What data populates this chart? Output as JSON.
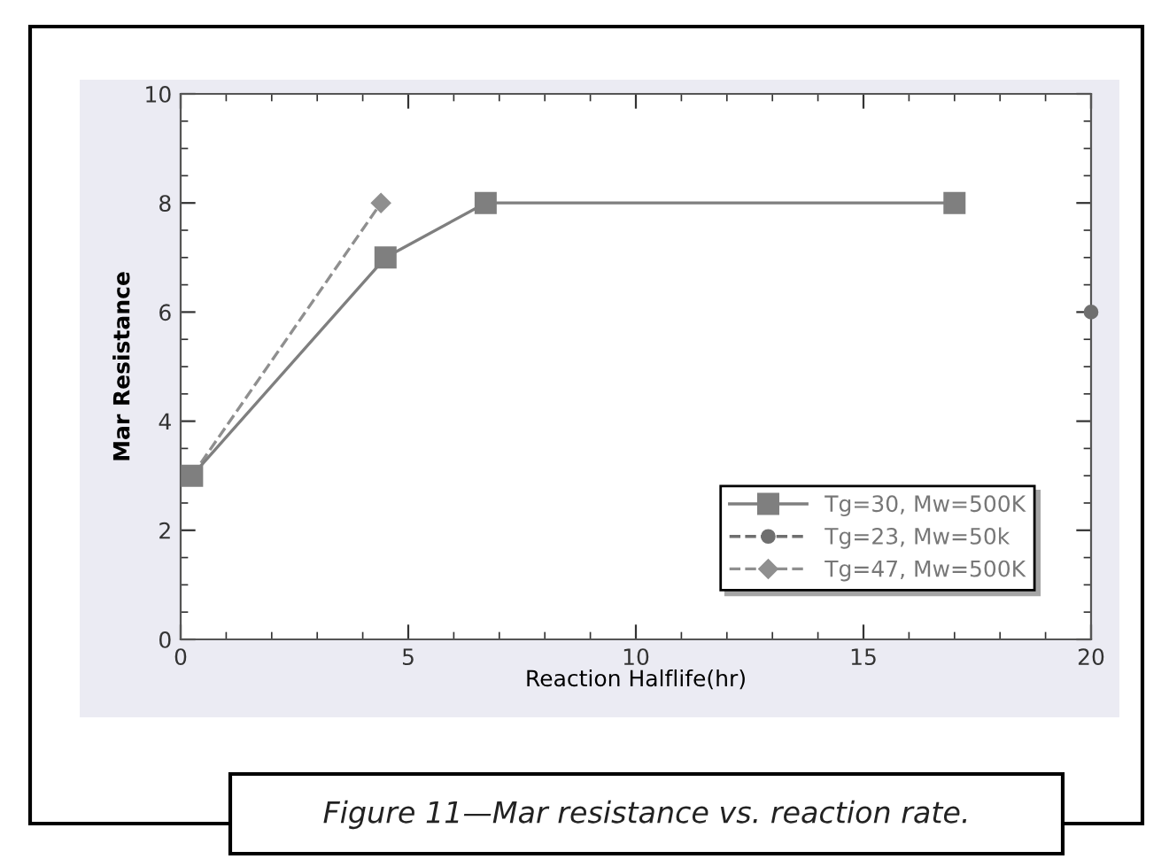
{
  "chart_data": {
    "type": "line",
    "xlabel": "Reaction Halflife(hr)",
    "ylabel": "Mar Resistance",
    "xlim": [
      0,
      20
    ],
    "xticks": [
      0,
      5,
      10,
      15,
      20
    ],
    "ylim": [
      0,
      10
    ],
    "yticks": [
      0,
      2,
      4,
      6,
      8,
      10
    ],
    "grid": false,
    "legend": "bottom right",
    "series": [
      {
        "name": "Tg=30, Mw=500K",
        "color": "#7f7f7f",
        "marker": "square",
        "line_style": "solid",
        "x": [
          0.25,
          4.5,
          6.7,
          17
        ],
        "values": [
          3,
          7,
          8,
          8
        ]
      },
      {
        "name": "Tg=23, Mw=50k",
        "color": "#6f6f6f",
        "marker": "circle",
        "line_style": "dashed",
        "x": [
          20
        ],
        "values": [
          6
        ]
      },
      {
        "name": "Tg=47, Mw=500K",
        "color": "#8f8f8f",
        "marker": "diamond",
        "line_style": "dashed",
        "x": [
          0.25,
          4.4
        ],
        "values": [
          3,
          8
        ]
      }
    ],
    "annotations": [
      "Figure 11—Mar resistance vs. reaction rate."
    ]
  }
}
